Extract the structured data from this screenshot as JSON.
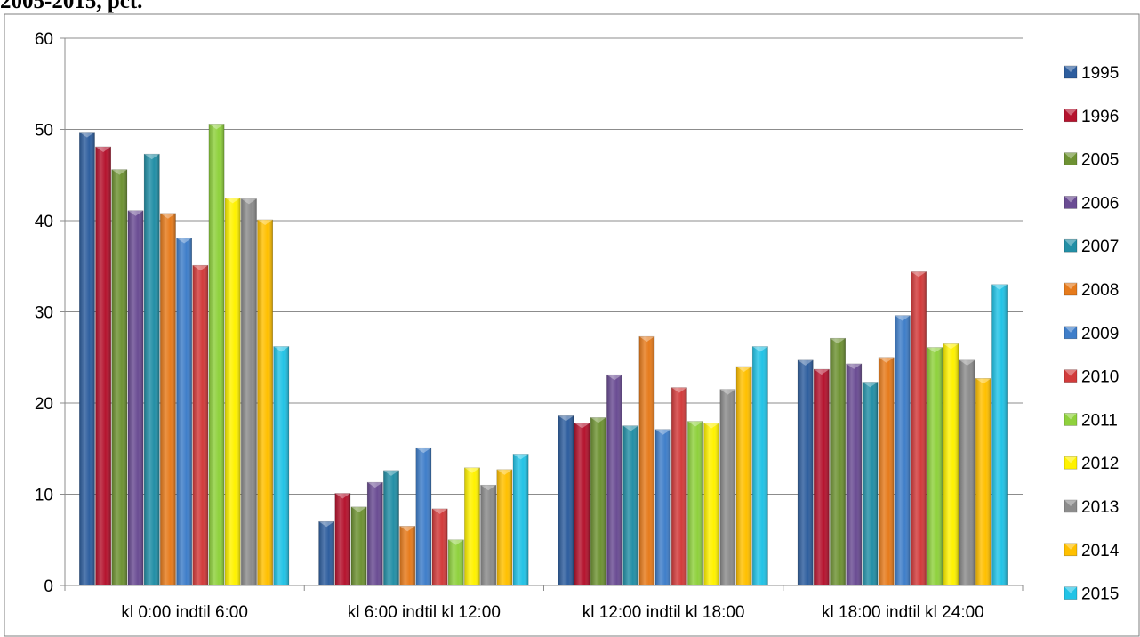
{
  "header": {
    "title_fragment": "2005-2015, pct."
  },
  "chart_data": {
    "type": "bar",
    "title": "2005-2015, pct.",
    "xlabel": "",
    "ylabel": "",
    "ylim": [
      0,
      60
    ],
    "yticks": [
      0,
      10,
      20,
      30,
      40,
      50,
      60
    ],
    "grid": true,
    "legend_position": "right",
    "categories": [
      "kl 0:00 indtil 6:00",
      "kl 6:00 indtil kl 12:00",
      "kl 12:00 indtil kl 18:00",
      "kl 18:00 indtil kl 24:00"
    ],
    "series": [
      {
        "name": "1995",
        "color": "#2E5E9E",
        "values": [
          49.7,
          7.0,
          18.6,
          24.7
        ]
      },
      {
        "name": "1996",
        "color": "#B5132E",
        "values": [
          48.1,
          10.1,
          17.8,
          23.7
        ]
      },
      {
        "name": "2005",
        "color": "#6E9233",
        "values": [
          45.6,
          8.6,
          18.4,
          27.1
        ]
      },
      {
        "name": "2006",
        "color": "#6A4C93",
        "values": [
          41.1,
          11.3,
          23.1,
          24.3
        ]
      },
      {
        "name": "2007",
        "color": "#238FA6",
        "values": [
          47.3,
          12.6,
          17.5,
          22.3
        ]
      },
      {
        "name": "2008",
        "color": "#E67B1C",
        "values": [
          40.8,
          6.5,
          27.3,
          25.0
        ]
      },
      {
        "name": "2009",
        "color": "#3F7EC9",
        "values": [
          38.1,
          15.1,
          17.1,
          29.6
        ]
      },
      {
        "name": "2010",
        "color": "#D23B3B",
        "values": [
          35.1,
          8.4,
          21.7,
          34.4
        ]
      },
      {
        "name": "2011",
        "color": "#8FD13D",
        "values": [
          50.6,
          5.0,
          18.0,
          26.1
        ]
      },
      {
        "name": "2012",
        "color": "#FFF200",
        "values": [
          42.5,
          12.9,
          17.8,
          26.5
        ]
      },
      {
        "name": "2013",
        "color": "#8C8C8C",
        "values": [
          42.4,
          11.0,
          21.5,
          24.7
        ]
      },
      {
        "name": "2014",
        "color": "#FFC000",
        "values": [
          40.1,
          12.7,
          24.0,
          22.7
        ]
      },
      {
        "name": "2015",
        "color": "#22C3E6",
        "values": [
          26.2,
          14.4,
          26.2,
          33.0
        ]
      }
    ]
  }
}
